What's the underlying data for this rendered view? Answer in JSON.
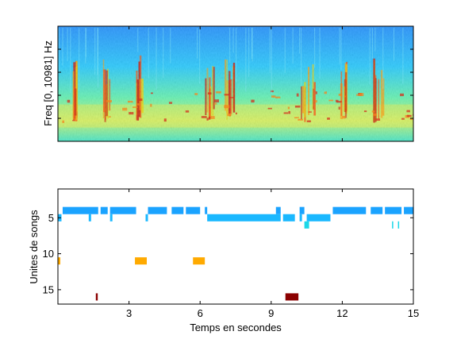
{
  "chart_data": [
    {
      "type": "heatmap",
      "ylabel": "Freq [0, 10981] Hz",
      "xlim": [
        0,
        15
      ],
      "ylim": [
        0,
        10981
      ],
      "grid": false,
      "colormap": [
        "#00008f",
        "#0050ff",
        "#00d0ff",
        "#70ff90",
        "#ffff00",
        "#ff9000",
        "#ff2000",
        "#800000"
      ]
    },
    {
      "type": "scatter",
      "xlabel": "Temps en secondes",
      "ylabel": "Unites de songs",
      "xlim": [
        0,
        15
      ],
      "ylim": [
        1,
        17
      ],
      "y_reversed": true,
      "x_ticks": [
        "3",
        "6",
        "9",
        "12",
        "15"
      ],
      "x_tick_values": [
        3,
        6,
        9,
        12,
        15
      ],
      "y_ticks": [
        "5",
        "10",
        "15"
      ],
      "y_tick_values": [
        5,
        10,
        15
      ],
      "grid": false,
      "segments": [
        {
          "unit": 4,
          "start": 0.2,
          "end": 1.7,
          "color": "#1aa3ff"
        },
        {
          "unit": 4,
          "start": 1.8,
          "end": 2.1,
          "color": "#1aa3ff"
        },
        {
          "unit": 4,
          "start": 2.2,
          "end": 3.3,
          "color": "#1aa3ff"
        },
        {
          "unit": 4,
          "start": 3.8,
          "end": 4.6,
          "color": "#1aa3ff"
        },
        {
          "unit": 4,
          "start": 4.8,
          "end": 5.3,
          "color": "#1aa3ff"
        },
        {
          "unit": 4,
          "start": 5.4,
          "end": 6.0,
          "color": "#1aa3ff"
        },
        {
          "unit": 4,
          "start": 6.2,
          "end": 6.3,
          "color": "#1aa3ff"
        },
        {
          "unit": 4,
          "start": 9.2,
          "end": 9.4,
          "color": "#1aa3ff"
        },
        {
          "unit": 4,
          "start": 10.2,
          "end": 10.4,
          "color": "#1aa3ff"
        },
        {
          "unit": 4,
          "start": 11.6,
          "end": 13.0,
          "color": "#1aa3ff"
        },
        {
          "unit": 4,
          "start": 13.2,
          "end": 13.7,
          "color": "#1aa3ff"
        },
        {
          "unit": 4,
          "start": 13.8,
          "end": 14.5,
          "color": "#1aa3ff"
        },
        {
          "unit": 4,
          "start": 14.6,
          "end": 15.0,
          "color": "#1aa3ff"
        },
        {
          "unit": 5,
          "start": 0.0,
          "end": 0.15,
          "color": "#1ab8ff"
        },
        {
          "unit": 5,
          "start": 1.3,
          "end": 1.4,
          "color": "#1ab8ff"
        },
        {
          "unit": 5,
          "start": 2.2,
          "end": 2.3,
          "color": "#1ab8ff"
        },
        {
          "unit": 5,
          "start": 3.7,
          "end": 3.8,
          "color": "#1ab8ff"
        },
        {
          "unit": 5,
          "start": 6.3,
          "end": 9.4,
          "color": "#1ab8ff"
        },
        {
          "unit": 5,
          "start": 9.5,
          "end": 10.0,
          "color": "#1ab8ff"
        },
        {
          "unit": 5,
          "start": 10.2,
          "end": 10.3,
          "color": "#1ab8ff"
        },
        {
          "unit": 5,
          "start": 10.5,
          "end": 11.5,
          "color": "#1ab8ff"
        },
        {
          "unit": 6,
          "start": 10.4,
          "end": 10.6,
          "color": "#1ad8e8"
        },
        {
          "unit": 6,
          "start": 14.1,
          "end": 14.15,
          "color": "#1ad8e8"
        },
        {
          "unit": 6,
          "start": 14.35,
          "end": 14.4,
          "color": "#1ad8e8"
        },
        {
          "unit": 11,
          "start": 0.0,
          "end": 0.1,
          "color": "#ffaa00"
        },
        {
          "unit": 11,
          "start": 3.25,
          "end": 3.75,
          "color": "#ffaa00"
        },
        {
          "unit": 11,
          "start": 5.7,
          "end": 6.2,
          "color": "#ffaa00"
        },
        {
          "unit": 16,
          "start": 1.6,
          "end": 1.68,
          "color": "#8b0000"
        },
        {
          "unit": 16,
          "start": 9.6,
          "end": 10.15,
          "color": "#8b0000"
        }
      ]
    }
  ]
}
